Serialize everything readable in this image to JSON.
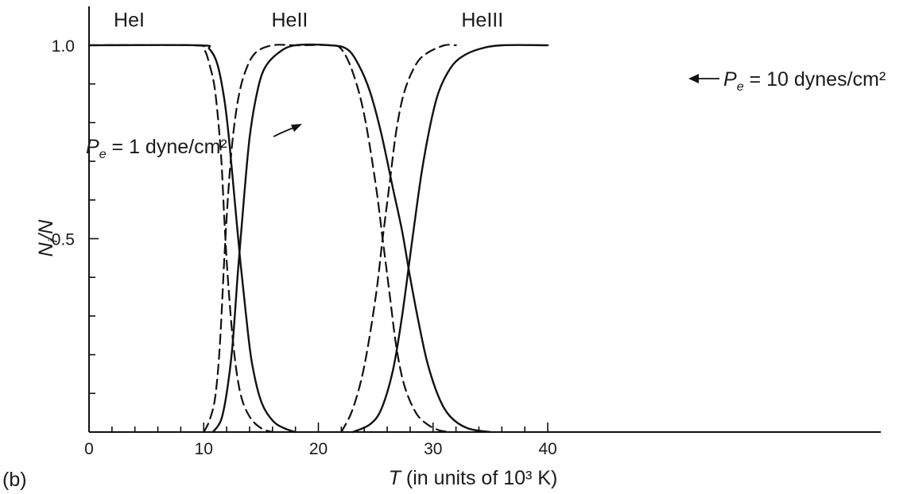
{
  "chart_data": {
    "type": "line",
    "panel_label": "(b)",
    "xlabel_var": "T",
    "xlabel_rest": " (in units of 10³ K)",
    "ylabel_var": "N",
    "ylabel_sub": "i",
    "ylabel_rest": "/N",
    "xlim": [
      0,
      42
    ],
    "ylim": [
      0,
      1.0
    ],
    "x_ticks": [
      0,
      10,
      20,
      30,
      40
    ],
    "x_tick_labels": [
      "0",
      "10",
      "20",
      "30",
      "40"
    ],
    "y_ticks": [
      0.5,
      1.0
    ],
    "y_tick_labels": [
      "0.5",
      "1.0"
    ],
    "grid": false,
    "region_labels": [
      {
        "text": "HeI",
        "x": 3.5,
        "y": 1.04
      },
      {
        "text": "HeII",
        "x": 17.5,
        "y": 1.04
      },
      {
        "text": "HeIII",
        "x": 34.3,
        "y": 1.04
      }
    ],
    "annotations": [
      {
        "var": "P",
        "sub": "e",
        "rest": " = 1 dyne/cm²"
      },
      {
        "var": "P",
        "sub": "e",
        "rest": " = 10 dynes/cm²"
      }
    ],
    "series": [
      {
        "style": "dashed",
        "curves": [
          {
            "x": [
              0,
              9,
              10,
              10.5,
              11,
              11.5,
              11.8,
              12.1,
              12.6,
              13.2,
              14,
              15,
              16
            ],
            "y": [
              1.0,
              1.0,
              0.99,
              0.95,
              0.88,
              0.72,
              0.55,
              0.4,
              0.22,
              0.1,
              0.04,
              0.01,
              0.0
            ]
          },
          {
            "x": [
              10,
              10.5,
              11,
              11.4,
              11.8,
              12.1,
              12.5,
              13,
              13.6,
              14.5,
              16,
              18,
              21,
              22,
              23,
              24,
              25,
              25.6,
              26.2,
              26.8,
              27.5,
              28.5,
              29.5,
              30.5,
              31.5
            ],
            "y": [
              0.0,
              0.03,
              0.09,
              0.22,
              0.45,
              0.6,
              0.75,
              0.86,
              0.93,
              0.98,
              1.0,
              1.0,
              1.0,
              0.99,
              0.93,
              0.82,
              0.64,
              0.5,
              0.36,
              0.22,
              0.12,
              0.05,
              0.02,
              0.005,
              0.0
            ]
          },
          {
            "x": [
              22,
              23,
              24,
              25,
              25.6,
              26.2,
              26.8,
              27.5,
              28.5,
              29.5,
              31,
              32
            ],
            "y": [
              0.0,
              0.06,
              0.17,
              0.35,
              0.5,
              0.64,
              0.78,
              0.88,
              0.95,
              0.98,
              1.0,
              1.0
            ]
          }
        ]
      },
      {
        "style": "solid",
        "curves": [
          {
            "x": [
              0,
              9.5,
              10.5,
              11.2,
              11.8,
              12.2,
              12.7,
              13.2,
              13.7,
              14.2,
              15,
              16,
              17,
              18
            ],
            "y": [
              1.0,
              1.0,
              0.99,
              0.95,
              0.86,
              0.76,
              0.6,
              0.44,
              0.3,
              0.18,
              0.08,
              0.03,
              0.01,
              0.0
            ]
          },
          {
            "x": [
              10.8,
              11.5,
              12,
              12.5,
              13,
              13.5,
              14,
              14.6,
              15.3,
              16.5,
              18,
              21,
              22.5,
              23.5,
              24.5,
              25.5,
              26.5,
              27.3,
              28,
              28.7,
              29.5,
              30.5,
              31.5,
              33,
              35
            ],
            "y": [
              0.0,
              0.03,
              0.1,
              0.22,
              0.42,
              0.6,
              0.76,
              0.87,
              0.94,
              0.98,
              1.0,
              1.0,
              0.99,
              0.95,
              0.88,
              0.77,
              0.63,
              0.52,
              0.4,
              0.29,
              0.18,
              0.09,
              0.04,
              0.01,
              0.0
            ]
          },
          {
            "x": [
              23,
              24.5,
              25.5,
              26.5,
              27.3,
              28.2,
              29,
              29.8,
              30.5,
              31.5,
              32.5,
              34,
              36,
              40
            ],
            "y": [
              0.0,
              0.02,
              0.06,
              0.16,
              0.3,
              0.5,
              0.67,
              0.8,
              0.88,
              0.94,
              0.97,
              0.99,
              1.0,
              1.0
            ]
          }
        ]
      }
    ]
  }
}
